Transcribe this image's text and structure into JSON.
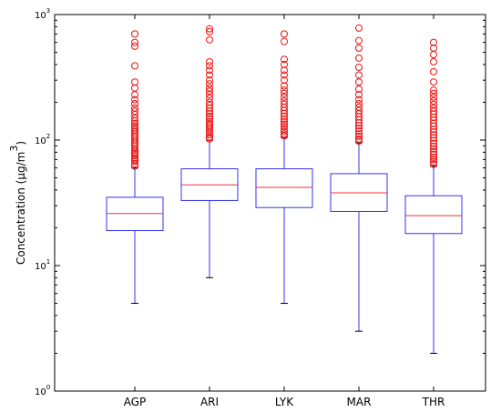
{
  "chart_data": {
    "type": "box",
    "ylabel": "Concentration (μg/m",
    "ylabel_superscript": "3",
    "ylabel_suffix": ")",
    "yscale": "log",
    "ylim": [
      1,
      1000
    ],
    "yticks": [
      {
        "base": "10",
        "exp": "0",
        "value": 1
      },
      {
        "base": "10",
        "exp": "1",
        "value": 10
      },
      {
        "base": "10",
        "exp": "2",
        "value": 100
      },
      {
        "base": "10",
        "exp": "3",
        "value": 1000
      }
    ],
    "categories": [
      "AGP",
      "ARI",
      "LYK",
      "MAR",
      "THR"
    ],
    "boxes": [
      {
        "whisker_low": 5,
        "q1": 19,
        "median": 26,
        "q3": 35,
        "whisker_high": 60,
        "outliers": [
          62,
          65,
          68,
          70,
          72,
          75,
          78,
          80,
          83,
          86,
          90,
          93,
          96,
          100,
          104,
          108,
          112,
          116,
          120,
          125,
          130,
          136,
          142,
          150,
          160,
          170,
          180,
          195,
          210,
          230,
          260,
          290,
          390,
          560,
          600,
          700
        ]
      },
      {
        "whisker_low": 8,
        "q1": 33,
        "median": 44,
        "q3": 59,
        "whisker_high": 100,
        "outliers": [
          102,
          105,
          110,
          115,
          120,
          125,
          130,
          135,
          140,
          148,
          155,
          162,
          170,
          180,
          190,
          200,
          215,
          230,
          245,
          260,
          280,
          300,
          330,
          360,
          390,
          420,
          630,
          730,
          770
        ]
      },
      {
        "whisker_low": 5,
        "q1": 29,
        "median": 42,
        "q3": 59,
        "whisker_high": 105,
        "outliers": [
          108,
          112,
          117,
          122,
          128,
          134,
          140,
          147,
          155,
          163,
          172,
          182,
          193,
          205,
          220,
          235,
          250,
          270,
          300,
          330,
          360,
          400,
          440,
          610,
          700
        ]
      },
      {
        "whisker_low": 3,
        "q1": 27,
        "median": 38,
        "q3": 54,
        "whisker_high": 95,
        "outliers": [
          98,
          102,
          107,
          112,
          118,
          124,
          130,
          137,
          145,
          153,
          162,
          172,
          183,
          195,
          210,
          230,
          255,
          290,
          330,
          380,
          450,
          540,
          620,
          780
        ]
      },
      {
        "whisker_low": 2,
        "q1": 18,
        "median": 25,
        "q3": 36,
        "whisker_high": 62,
        "outliers": [
          64,
          67,
          70,
          73,
          77,
          81,
          85,
          89,
          94,
          99,
          104,
          110,
          116,
          122,
          129,
          136,
          144,
          152,
          161,
          170,
          180,
          192,
          205,
          220,
          235,
          250,
          290,
          350,
          420,
          480,
          540,
          600
        ]
      }
    ],
    "colors": {
      "box": "#3333ee",
      "median": "#ee3333",
      "outlier": "#ee1111",
      "axis": "#000000"
    },
    "grid": false
  }
}
